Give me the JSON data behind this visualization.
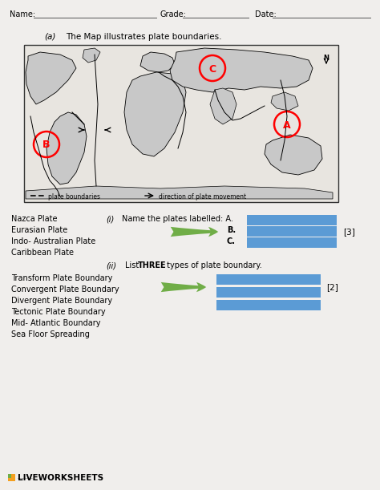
{
  "box_color": "#5b9bd5",
  "arrow_color": "#70ad47",
  "bg_color": "#f0eeec",
  "text_color": "#000000",
  "map_bg": "#e8e4df",
  "map_border": "#333333",
  "lw_orange": "#f4a020",
  "lw_green": "#70ad47",
  "left_options_i": [
    "Nazca Plate",
    "Eurasian Plate",
    "Indo- Australian Plate",
    "Caribbean Plate"
  ],
  "left_options_ii": [
    "Transform Plate Boundary",
    "Convergent Plate Boundary",
    "Divergent Plate Boundary",
    "Tectonic Plate Boundary",
    "Mid- Atlantic Boundary",
    "Sea Floor Spreading"
  ]
}
